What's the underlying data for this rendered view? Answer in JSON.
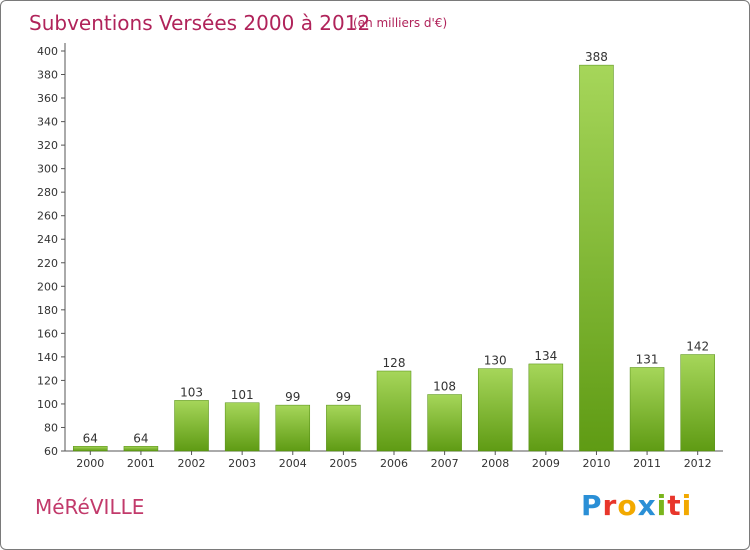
{
  "header": {
    "title": "Subventions Versées 2000 à 2012",
    "subtitle": "(en milliers d'€)"
  },
  "footer": {
    "commune": "MéRéVILLE",
    "brand": {
      "letters": [
        "P",
        "r",
        "o",
        "x",
        "i",
        "t",
        "i"
      ],
      "colors": [
        "#2a8fd6",
        "#e8362b",
        "#f2a900",
        "#2a8fd6",
        "#7ab51d",
        "#e8362b",
        "#f2a900"
      ]
    }
  },
  "colors": {
    "bar_light": "#a6d65a",
    "bar_dark": "#5f9b14",
    "axis": "#555555",
    "grid": "#dddddd",
    "title": "#b0235a"
  },
  "chart_data": {
    "type": "bar",
    "categories": [
      "2000",
      "2001",
      "2002",
      "2003",
      "2004",
      "2005",
      "2006",
      "2007",
      "2008",
      "2009",
      "2010",
      "2011",
      "2012"
    ],
    "values": [
      64,
      64,
      103,
      101,
      99,
      99,
      128,
      108,
      130,
      134,
      388,
      131,
      142
    ],
    "ylim": [
      60,
      400
    ],
    "yticks": [
      60,
      80,
      100,
      120,
      140,
      160,
      180,
      200,
      220,
      240,
      260,
      280,
      300,
      320,
      340,
      360,
      380,
      400
    ],
    "data_labels": [
      "64",
      "64",
      "103",
      "101",
      "99",
      "99",
      "128",
      "108",
      "130",
      "134",
      "388",
      "131",
      "142"
    ],
    "grid": false
  }
}
